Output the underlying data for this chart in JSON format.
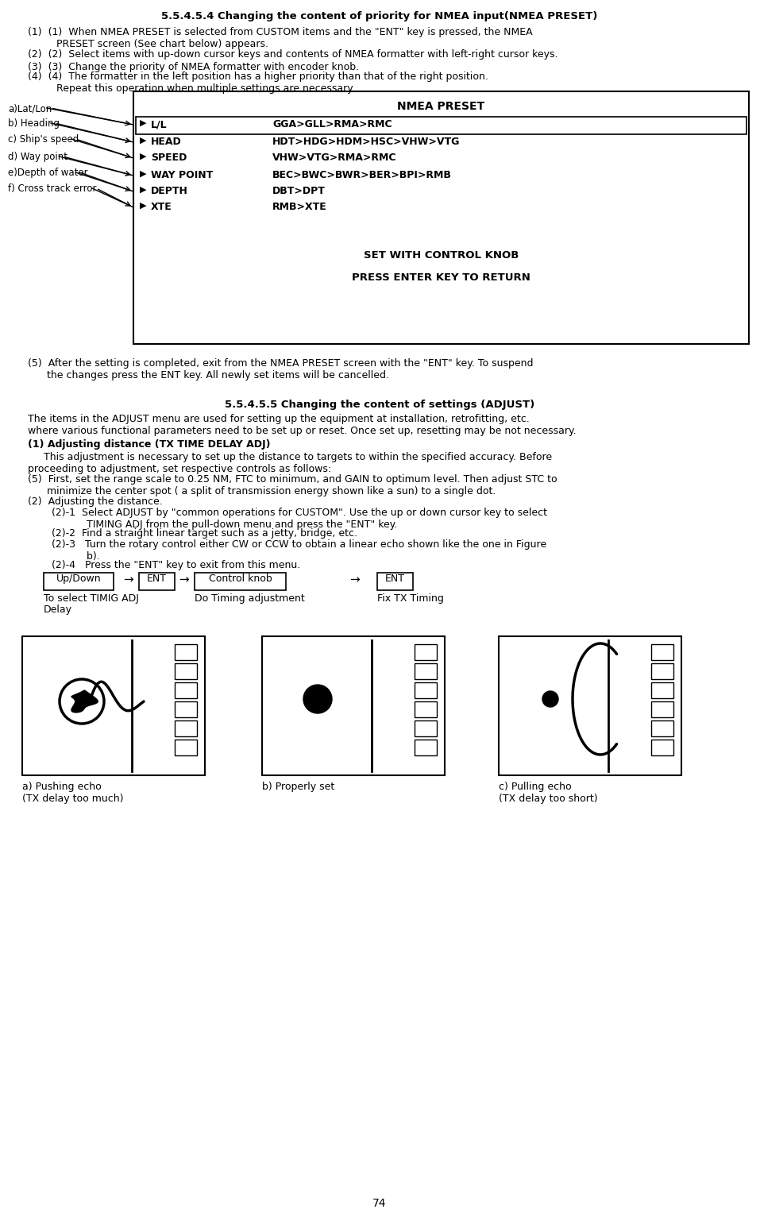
{
  "page_number": "74",
  "bg_color": "#ffffff",
  "section_title": "5.5.4.5.4 Changing the content of priority for NMEA input(NMEA PRESET)",
  "item1": "(1)  (1)  When NMEA PRESET is selected from CUSTOM items and the \"ENT\" key is pressed, the NMEA\n         PRESET screen (See chart below) appears.",
  "item2": "(2)  (2)  Select items with up-down cursor keys and contents of NMEA formatter with left-right cursor keys.",
  "item3": "(3)  (3)  Change the priority of NMEA formatter with encoder knob.",
  "item4": "(4)  (4)  The formatter in the left position has a higher priority than that of the right position.\n         Repeat this operation when multiple settings are necessary.",
  "nmea_preset_title": "NMEA PRESET",
  "nmea_left_labels": [
    "a)Lat/Lon",
    "b) Heading",
    "c) Ship's speed",
    "d) Way point",
    "e)Depth of water",
    "f) Cross track error"
  ],
  "nmea_rows_left": [
    "L/L",
    "HEAD",
    "SPEED",
    "WAY POINT",
    "DEPTH",
    "XTE"
  ],
  "nmea_rows_right": [
    "GGA>GLL>RMA>RMC",
    "HDT>HDG>HDM>HSC>VHW>VTG",
    "VHW>VTG>RMA>RMC",
    "BEC>BWC>BWR>BER>BPI>RMB",
    "DBT>DPT",
    "RMB>XTE"
  ],
  "nmea_bottom1": "SET WITH CONTROL KNOB",
  "nmea_bottom2": "PRESS ENTER KEY TO RETURN",
  "item5": "(5)  After the setting is completed, exit from the NMEA PRESET screen with the \"ENT\" key. To suspend\n      the changes press the ENT key. All newly set items will be cancelled.",
  "sect2_title": "5.5.4.5.5 Changing the content of settings (ADJUST)",
  "sect2_body": "The items in the ADJUST menu are used for setting up the equipment at installation, retrofitting, etc.\nwhere various functional parameters need to be set up or reset. Once set up, resetting may be not necessary.",
  "sect2_sub1": "(1) Adjusting distance (TX TIME DELAY ADJ)",
  "sect2_sub1_body1": "     This adjustment is necessary to set up the distance to targets to within the specified accuracy. Before\nproceeding to adjustment, set respective controls as follows:",
  "sect2_sub1_5": "(5)  First, set the range scale to 0.25 NM, FTC to minimum, and GAIN to optimum level. Then adjust STC to\n      minimize the center spot ( a split of transmission energy shown like a sun) to a single dot.",
  "sect2_sub1_2": "(2)  Adjusting the distance.",
  "sub2_1": "(2)-1  Select ADJUST by \"common operations for CUSTOM\". Use the up or down cursor key to select\n           TIMING ADJ from the pull-down menu and press the \"ENT\" key.",
  "sub2_2": "(2)-2  Find a straight linear target such as a jetty, bridge, etc.",
  "sub2_3": "(2)-3   Turn the rotary control either CW or CCW to obtain a linear echo shown like the one in Figure\n           b).",
  "sub2_4": "(2)-4   Press the \"ENT\" key to exit from this menu.",
  "flow_box1": "Up/Down",
  "flow_box2": "ENT",
  "flow_box3": "Control knob",
  "flow_box4": "ENT",
  "flow_lbl1a": "To select TIMIG ADJ",
  "flow_lbl1b": "Delay",
  "flow_lbl2": "Do Timing adjustment",
  "flow_lbl3": "Fix TX Timing",
  "diag_lbl_a": "a) Pushing echo\n(TX delay too much)",
  "diag_lbl_b": "b) Properly set",
  "diag_lbl_c": "c) Pulling echo\n(TX delay too short)"
}
